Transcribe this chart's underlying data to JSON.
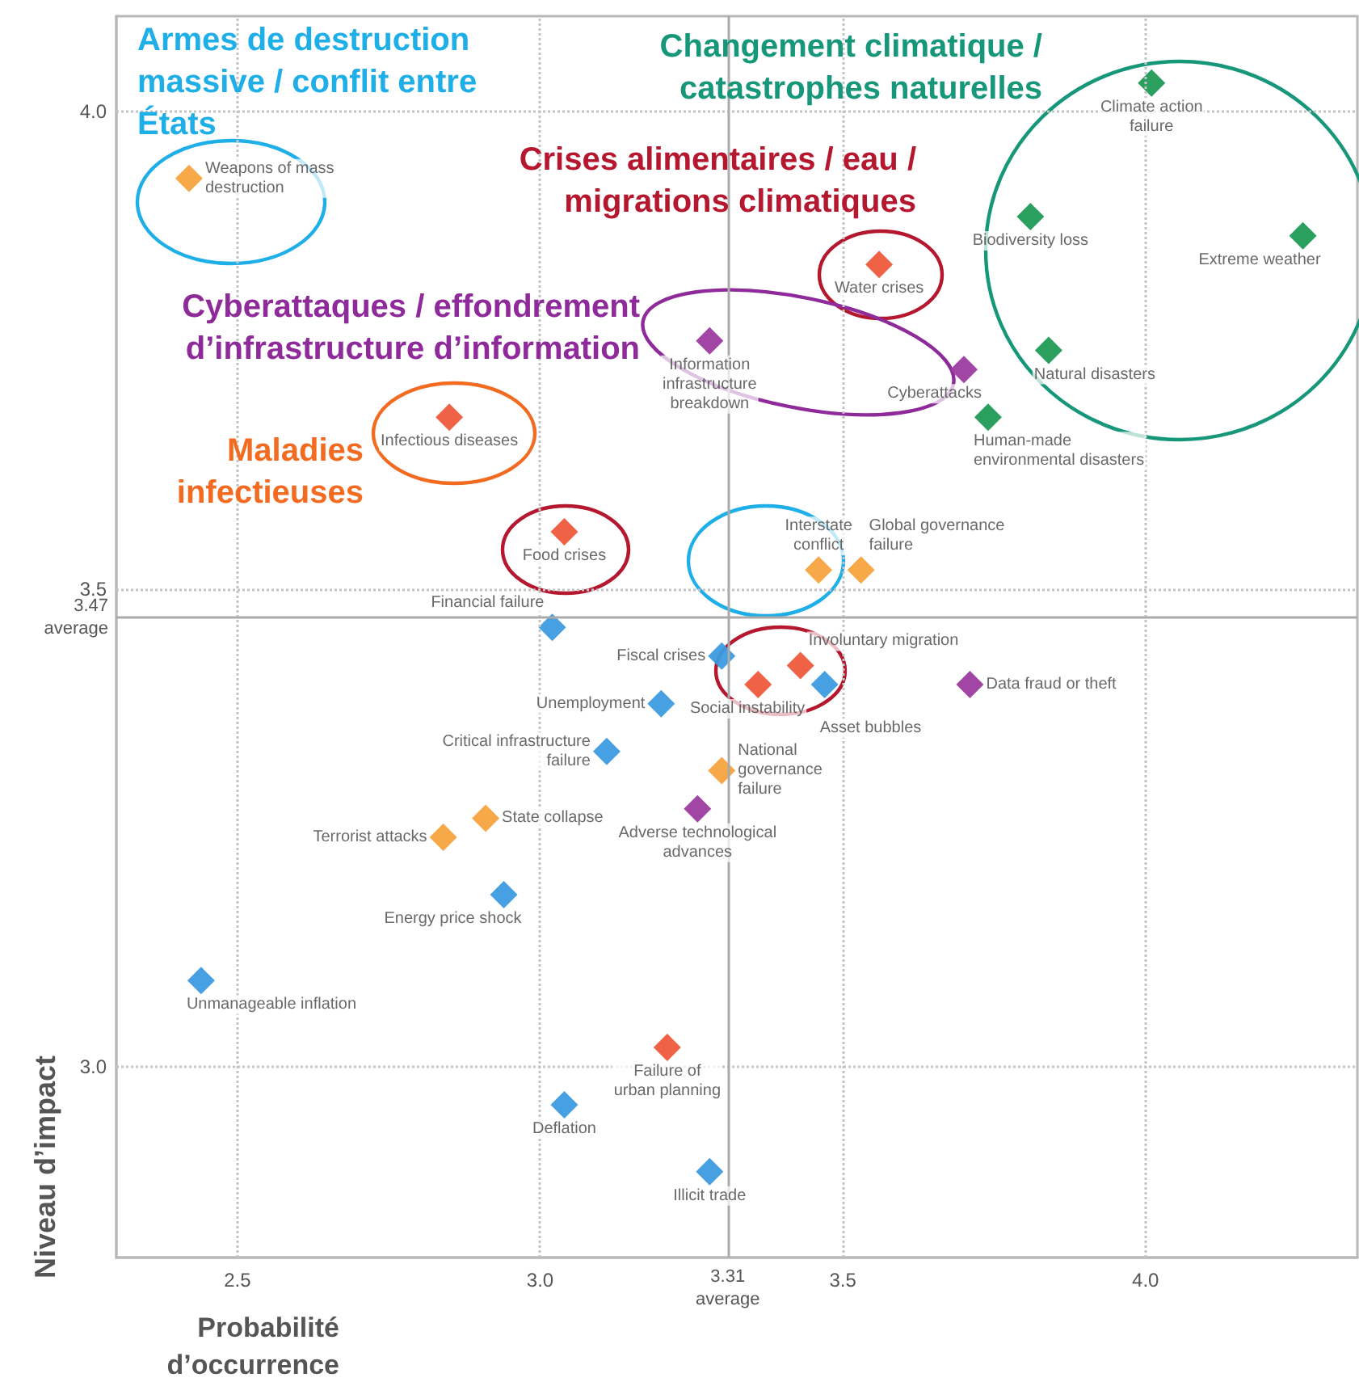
{
  "chart_data": {
    "type": "scatter",
    "xlabel": "Probabilité\nd’occurrence",
    "ylabel": "Niveau d’impact",
    "xlim": [
      2.3,
      4.35
    ],
    "ylim": [
      2.8,
      4.1
    ],
    "xticks": [
      2.5,
      {
        "value": 3,
        "label": "3.0"
      },
      3.5,
      {
        "value": 4,
        "label": "4.0"
      }
    ],
    "yticks": [
      {
        "value": 3,
        "label": "3.0"
      },
      3.5,
      {
        "value": 4,
        "label": "4.0"
      }
    ],
    "grid": true,
    "marker": "diamond",
    "ref_lines": [
      {
        "axis": "x",
        "value": 3.31,
        "label": "3.31\naverage"
      },
      {
        "axis": "y",
        "value": 3.47,
        "label": "3.47\naverage"
      }
    ],
    "series": [
      {
        "color": "#3d9be0",
        "x": [
          3.02,
          3.3,
          3.47,
          3.2,
          3.11,
          2.94,
          2.44,
          3.04,
          3.28
        ],
        "values": [
          3.46,
          3.43,
          3.4,
          3.38,
          3.33,
          3.18,
          3.09,
          2.96,
          2.89
        ]
      },
      {
        "color": "#1f9a55",
        "x": [
          4.01,
          3.81,
          4.26,
          3.84,
          3.74
        ],
        "values": [
          4.03,
          3.89,
          3.87,
          3.75,
          3.68
        ]
      },
      {
        "color": "#f7a440",
        "x": [
          2.42,
          3.46,
          3.53,
          3.3,
          2.91,
          2.84
        ],
        "values": [
          3.93,
          3.52,
          3.52,
          3.31,
          3.26,
          3.24
        ]
      },
      {
        "color": "#ef5a3c",
        "x": [
          2.85,
          3.04,
          3.56,
          3.43,
          3.36,
          3.21
        ],
        "values": [
          3.68,
          3.56,
          3.84,
          3.42,
          3.4,
          3.02
        ]
      },
      {
        "color": "#9c3c9f",
        "x": [
          3.28,
          3.7,
          3.71,
          3.26
        ],
        "values": [
          3.76,
          3.73,
          3.4,
          3.27
        ]
      }
    ],
    "annotations": [
      "Armes de destruction\nmassive / conflit entre\nÉtats",
      "Changement climatique /\ncatastrophes naturelles",
      "Crises alimentaires / eau /\nmigrations climatiques",
      "Cyberattaques / effondrement\nd’infrastructure d’information",
      "Maladies\ninfectieuses",
      {
        "text": "Financial failure",
        "x": 3.02,
        "y": 3.46
      },
      {
        "text": "Fiscal crises",
        "x": 3.3,
        "y": 3.43
      },
      {
        "text": "Asset bubbles",
        "x": 3.47,
        "y": 3.4
      },
      {
        "text": "Unemployment",
        "x": 3.2,
        "y": 3.38
      },
      {
        "text": "Critical infrastructure\nfailure",
        "x": 3.11,
        "y": 3.33
      },
      {
        "text": "Energy price shock",
        "x": 2.94,
        "y": 3.18
      },
      {
        "text": "Unmanageable inflation",
        "x": 2.44,
        "y": 3.09
      },
      {
        "text": "Deflation",
        "x": 3.04,
        "y": 2.96
      },
      {
        "text": "Illicit trade",
        "x": 3.28,
        "y": 2.89
      },
      {
        "text": "Climate action\nfailure",
        "x": 4.01,
        "y": 4.03
      },
      {
        "text": "Biodiversity loss",
        "x": 3.81,
        "y": 3.89
      },
      {
        "text": "Extreme weather",
        "x": 4.26,
        "y": 3.87
      },
      {
        "text": "Natural disasters",
        "x": 3.84,
        "y": 3.75
      },
      {
        "text": "Human-made\nenvironmental disasters",
        "x": 3.74,
        "y": 3.68
      },
      {
        "text": "Weapons of mass\ndestruction",
        "x": 2.42,
        "y": 3.93
      },
      {
        "text": "Interstate\nconflict",
        "x": 3.46,
        "y": 3.52
      },
      {
        "text": "Global governance\nfailure",
        "x": 3.53,
        "y": 3.52
      },
      {
        "text": "National\ngovernance\nfailure",
        "x": 3.3,
        "y": 3.31
      },
      {
        "text": "State collapse",
        "x": 2.91,
        "y": 3.26
      },
      {
        "text": "Terrorist attacks",
        "x": 2.84,
        "y": 3.24
      },
      {
        "text": "Infectious diseases",
        "x": 2.85,
        "y": 3.68
      },
      {
        "text": "Food crises",
        "x": 3.04,
        "y": 3.56
      },
      {
        "text": "Water crises",
        "x": 3.56,
        "y": 3.84
      },
      {
        "text": "Involuntary migration",
        "x": 3.43,
        "y": 3.42
      },
      {
        "text": "Social instability",
        "x": 3.36,
        "y": 3.4
      },
      {
        "text": "Failure of\nurban planning",
        "x": 3.21,
        "y": 3.02
      },
      {
        "text": "Information\ninfrastructure\nbreakdown",
        "x": 3.28,
        "y": 3.76
      },
      {
        "text": "Cyberattacks",
        "x": 3.7,
        "y": 3.73
      },
      {
        "text": "Data fraud or theft",
        "x": 3.71,
        "y": 3.4
      },
      {
        "text": "Adverse technological\nadvances",
        "x": 3.26,
        "y": 3.27
      }
    ]
  }
}
